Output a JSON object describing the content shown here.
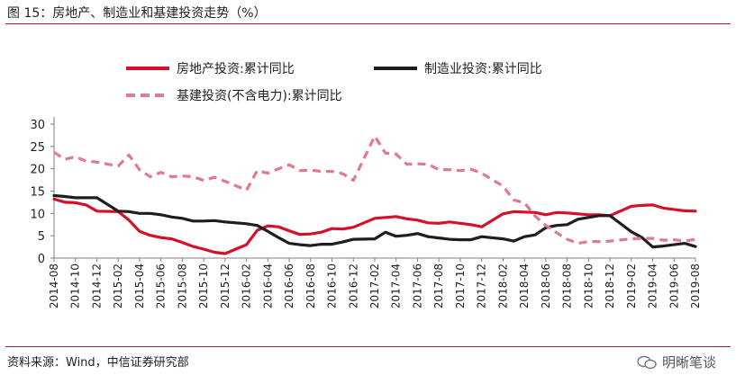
{
  "figure": {
    "title": "图 15：房地产、制造业和基建投资走势（%）",
    "source": "资料来源：Wind，中信证券研究部",
    "watermark": "明晰笔谈"
  },
  "chart_data": {
    "type": "line",
    "title": "",
    "xlabel": "",
    "ylabel": "",
    "ylim": [
      0,
      30
    ],
    "yticks": [
      0,
      5,
      10,
      15,
      20,
      25,
      30
    ],
    "grid": false,
    "legend_position": "top",
    "x": [
      "2014-08",
      "2014-10",
      "2014-12",
      "2015-02",
      "2015-04",
      "2015-06",
      "2015-08",
      "2015-10",
      "2015-12",
      "2016-02",
      "2016-04",
      "2016-06",
      "2016-08",
      "2016-10",
      "2016-12",
      "2017-02",
      "2017-04",
      "2017-06",
      "2017-08",
      "2017-10",
      "2017-12",
      "2018-02",
      "2018-04",
      "2018-06",
      "2018-08",
      "2018-10",
      "2018-12",
      "2019-02",
      "2019-04",
      "2019-06",
      "2019-08"
    ],
    "series": [
      {
        "name": "房地产投资:累计同比",
        "color": "#d7102a",
        "style": "solid",
        "x": [
          "2014-08",
          "2014-09",
          "2014-10",
          "2014-11",
          "2014-12",
          "2015-02",
          "2015-03",
          "2015-04",
          "2015-05",
          "2015-06",
          "2015-07",
          "2015-08",
          "2015-09",
          "2015-10",
          "2015-11",
          "2015-12",
          "2016-02",
          "2016-03",
          "2016-04",
          "2016-05",
          "2016-06",
          "2016-07",
          "2016-08",
          "2016-09",
          "2016-10",
          "2016-11",
          "2016-12",
          "2017-02",
          "2017-03",
          "2017-04",
          "2017-05",
          "2017-06",
          "2017-07",
          "2017-08",
          "2017-09",
          "2017-10",
          "2017-11",
          "2017-12",
          "2018-02",
          "2018-03",
          "2018-04",
          "2018-05",
          "2018-06",
          "2018-07",
          "2018-08",
          "2018-09",
          "2018-10",
          "2018-11",
          "2018-12",
          "2019-02",
          "2019-03",
          "2019-04",
          "2019-05",
          "2019-06",
          "2019-07",
          "2019-08"
        ],
        "values": [
          13.2,
          12.5,
          12.4,
          11.9,
          10.5,
          10.4,
          8.5,
          6.0,
          5.1,
          4.6,
          4.3,
          3.5,
          2.6,
          2.0,
          1.3,
          1.0,
          3.0,
          6.2,
          7.2,
          7.0,
          6.1,
          5.3,
          5.4,
          5.8,
          6.6,
          6.5,
          6.9,
          8.9,
          9.1,
          9.3,
          8.8,
          8.5,
          7.9,
          7.8,
          8.1,
          7.8,
          7.5,
          7.0,
          9.9,
          10.4,
          10.3,
          10.2,
          9.7,
          10.2,
          10.1,
          9.9,
          9.7,
          9.7,
          9.5,
          11.6,
          11.8,
          11.9,
          11.2,
          10.9,
          10.6,
          10.5
        ]
      },
      {
        "name": "制造业投资:累计同比",
        "color": "#1e1e1e",
        "style": "solid",
        "x": [
          "2014-08",
          "2014-09",
          "2014-10",
          "2014-11",
          "2014-12",
          "2015-02",
          "2015-03",
          "2015-04",
          "2015-05",
          "2015-06",
          "2015-07",
          "2015-08",
          "2015-09",
          "2015-10",
          "2015-11",
          "2015-12",
          "2016-02",
          "2016-03",
          "2016-04",
          "2016-05",
          "2016-06",
          "2016-07",
          "2016-08",
          "2016-09",
          "2016-10",
          "2016-11",
          "2016-12",
          "2017-02",
          "2017-03",
          "2017-04",
          "2017-05",
          "2017-06",
          "2017-07",
          "2017-08",
          "2017-09",
          "2017-10",
          "2017-11",
          "2017-12",
          "2018-02",
          "2018-03",
          "2018-04",
          "2018-05",
          "2018-06",
          "2018-07",
          "2018-08",
          "2018-09",
          "2018-10",
          "2018-11",
          "2018-12",
          "2019-02",
          "2019-03",
          "2019-04",
          "2019-05",
          "2019-06",
          "2019-07",
          "2019-08"
        ],
        "values": [
          14.0,
          13.8,
          13.5,
          13.5,
          13.5,
          10.5,
          10.4,
          10.0,
          10.0,
          9.7,
          9.2,
          8.9,
          8.3,
          8.3,
          8.4,
          8.1,
          7.7,
          7.3,
          6.0,
          4.6,
          3.3,
          3.0,
          2.8,
          3.1,
          3.1,
          3.6,
          4.2,
          4.3,
          5.8,
          4.9,
          5.1,
          5.5,
          4.8,
          4.5,
          4.2,
          4.1,
          4.1,
          4.8,
          4.3,
          3.8,
          4.8,
          5.2,
          6.8,
          7.3,
          7.5,
          8.7,
          9.1,
          9.5,
          9.5,
          5.9,
          4.6,
          2.5,
          2.7,
          3.0,
          3.3,
          2.6
        ]
      },
      {
        "name": "基建投资(不含电力):累计同比",
        "color": "#e27a8b",
        "style": "dashed",
        "x": [
          "2014-08",
          "2014-09",
          "2014-10",
          "2014-11",
          "2014-12",
          "2015-02",
          "2015-03",
          "2015-04",
          "2015-05",
          "2015-06",
          "2015-07",
          "2015-08",
          "2015-09",
          "2015-10",
          "2015-11",
          "2015-12",
          "2016-02",
          "2016-03",
          "2016-04",
          "2016-05",
          "2016-06",
          "2016-07",
          "2016-08",
          "2016-09",
          "2016-10",
          "2016-11",
          "2016-12",
          "2017-02",
          "2017-03",
          "2017-04",
          "2017-05",
          "2017-06",
          "2017-07",
          "2017-08",
          "2017-09",
          "2017-10",
          "2017-11",
          "2017-12",
          "2018-02",
          "2018-03",
          "2018-04",
          "2018-05",
          "2018-06",
          "2018-07",
          "2018-08",
          "2018-09",
          "2018-10",
          "2018-11",
          "2018-12",
          "2019-02",
          "2019-03",
          "2019-04",
          "2019-05",
          "2019-06",
          "2019-07",
          "2019-08"
        ],
        "values": [
          23.7,
          22.1,
          22.7,
          21.7,
          21.5,
          20.6,
          23.1,
          19.8,
          18.2,
          19.2,
          18.2,
          18.4,
          18.2,
          17.4,
          18.1,
          17.2,
          15.2,
          19.6,
          19.0,
          20.0,
          20.9,
          19.6,
          19.7,
          19.4,
          19.4,
          18.9,
          17.4,
          27.3,
          23.5,
          23.3,
          21.0,
          21.1,
          21.0,
          19.8,
          19.8,
          19.6,
          19.9,
          19.0,
          16.1,
          13.0,
          12.4,
          9.4,
          7.3,
          5.7,
          4.2,
          3.3,
          3.7,
          3.7,
          3.8,
          4.3,
          4.4,
          4.4,
          4.0,
          4.1,
          3.8,
          4.2
        ]
      }
    ]
  }
}
